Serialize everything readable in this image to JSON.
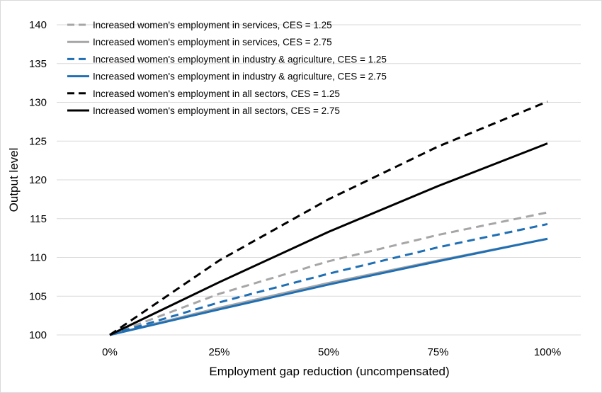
{
  "chart_data": {
    "type": "line",
    "title": "",
    "xlabel": "Employment gap reduction (uncompensated)",
    "ylabel": "Output level",
    "categories": [
      "0%",
      "25%",
      "50%",
      "75%",
      "100%"
    ],
    "x": [
      0,
      25,
      50,
      75,
      100
    ],
    "ylim": [
      100,
      140
    ],
    "yticks": [
      100,
      105,
      110,
      115,
      120,
      125,
      130,
      135,
      140
    ],
    "y_tick_labels": [
      "100",
      "105",
      "110",
      "115",
      "120",
      "125",
      "130",
      "135",
      "140"
    ],
    "grid": "horizontal",
    "legend_position": "top-left",
    "series": [
      {
        "name": "Increased women's employment in services, CES = 1.25",
        "color": "#a6a6a6",
        "dash": "dashed",
        "values": [
          100,
          105.3,
          109.5,
          112.9,
          115.8
        ]
      },
      {
        "name": "Increased women's employment in services, CES = 2.75",
        "color": "#a6a6a6",
        "dash": "solid",
        "values": [
          100,
          103.5,
          106.7,
          109.6,
          112.4
        ]
      },
      {
        "name": "Increased women's employment in industry & agriculture, CES = 1.25",
        "color": "#1f6fb5",
        "dash": "dashed",
        "values": [
          100,
          104.2,
          107.9,
          111.3,
          114.3
        ]
      },
      {
        "name": "Increased women's employment in industry & agriculture, CES = 2.75",
        "color": "#1f6fb5",
        "dash": "solid",
        "values": [
          100,
          103.3,
          106.5,
          109.5,
          112.4
        ]
      },
      {
        "name": "Increased women's employment in all sectors, CES = 1.25",
        "color": "#000000",
        "dash": "dashed",
        "values": [
          100,
          109.6,
          117.5,
          124.3,
          130.1
        ]
      },
      {
        "name": "Increased women's employment in all sectors, CES = 2.75",
        "color": "#000000",
        "dash": "solid",
        "values": [
          100,
          106.8,
          113.3,
          119.2,
          124.7
        ]
      }
    ]
  }
}
